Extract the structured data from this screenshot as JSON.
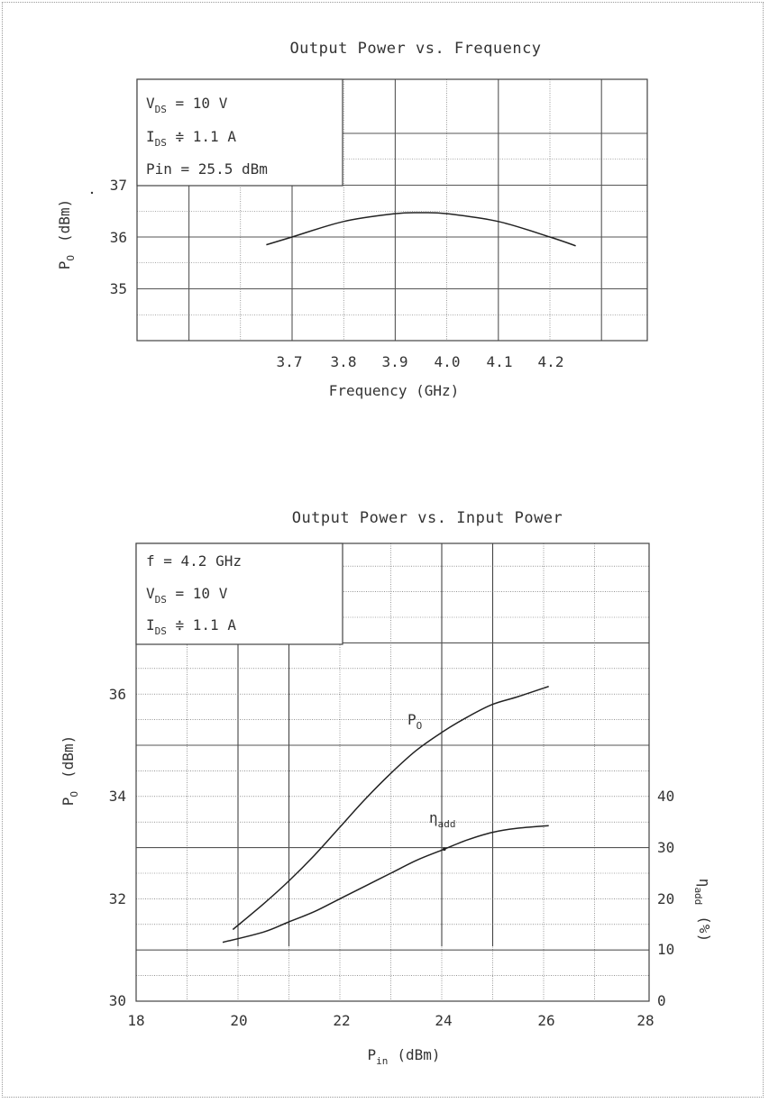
{
  "chart_data": [
    {
      "type": "line",
      "title": "Output Power vs. Frequency",
      "xlabel": "Frequency (GHz)",
      "ylabel": {
        "main": "P",
        "sub": "O",
        "unit": "(dBm)"
      },
      "annotation": {
        "line1": {
          "main": "V",
          "sub": "DS",
          "rest": " = 10 V"
        },
        "line2": {
          "main": "I",
          "sub": "DS",
          "rest": " ≑ 1.1 A"
        },
        "line3": "Pin = 25.5 dBm"
      },
      "x_ticks": [
        "3.7",
        "3.8",
        "3.9",
        "4.0",
        "4.1",
        "4.2"
      ],
      "y_ticks": [
        "37",
        "36",
        "35"
      ],
      "grid": true,
      "series": [
        {
          "x": [
            3.65,
            3.7,
            3.8,
            3.9,
            3.95,
            4.0,
            4.1,
            4.2,
            4.25
          ],
          "y": [
            35.85,
            36.0,
            36.3,
            36.45,
            36.47,
            36.45,
            36.3,
            36.0,
            35.83
          ]
        }
      ]
    },
    {
      "type": "line",
      "title": "Output Power vs. Input Power",
      "xlabel": {
        "main": "P",
        "sub": "in",
        "unit": "(dBm)"
      },
      "ylabel": {
        "main": "P",
        "sub": "O",
        "unit": "(dBm)"
      },
      "y2label": {
        "main": "η",
        "sub": "add",
        "unit": "(%)"
      },
      "annotation": {
        "line1": "f = 4.2 GHz",
        "line2": {
          "main": "V",
          "sub": "DS",
          "rest": " = 10 V"
        },
        "line3": {
          "main": "I",
          "sub": "DS",
          "rest": " ≑ 1.1 A"
        }
      },
      "xlim": [
        18,
        28
      ],
      "ylim": [
        30,
        37
      ],
      "y2lim": [
        0,
        50
      ],
      "x_ticks": [
        "18",
        "20",
        "22",
        "24",
        "26",
        "28"
      ],
      "y_ticks": [
        "30",
        "32",
        "34",
        "36"
      ],
      "y2_ticks": [
        "0",
        "10",
        "20",
        "30",
        "40"
      ],
      "grid": true,
      "series": [
        {
          "label_main": "P",
          "label_sub": "O",
          "axis": "left",
          "x": [
            19.9,
            20.5,
            21,
            21.5,
            22,
            22.5,
            23,
            23.5,
            24,
            24.5,
            25,
            25.5,
            26.1
          ],
          "y": [
            31.4,
            31.9,
            32.35,
            32.85,
            33.4,
            33.95,
            34.45,
            34.9,
            35.25,
            35.55,
            35.8,
            35.95,
            36.15
          ]
        },
        {
          "label_main": "η",
          "label_sub": "add",
          "axis": "right",
          "x": [
            19.7,
            20.5,
            21,
            21.5,
            22,
            22.5,
            23,
            23.5,
            24,
            24.5,
            25,
            25.5,
            26.1
          ],
          "y": [
            11.5,
            13.5,
            15.5,
            17.5,
            20,
            22.5,
            25,
            27.5,
            29.5,
            31.5,
            33,
            33.8,
            34.3
          ]
        }
      ]
    }
  ]
}
